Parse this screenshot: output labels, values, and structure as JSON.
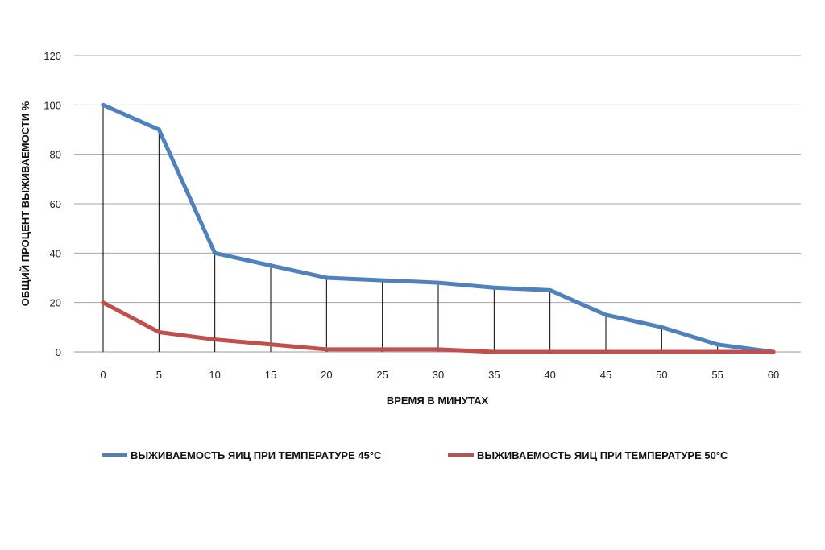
{
  "chart_data": {
    "type": "line",
    "title": "",
    "xlabel": "ВРЕМЯ В МИНУТАХ",
    "ylabel": "ОБЩИЙ ПРОЦЕНТ ВЫЖИВАЕМОСТИ  %",
    "x": [
      0,
      5,
      10,
      15,
      20,
      25,
      30,
      35,
      40,
      45,
      50,
      55,
      60
    ],
    "ylim": [
      0,
      120
    ],
    "yticks": [
      0,
      20,
      40,
      60,
      80,
      100,
      120
    ],
    "grid": true,
    "legend_position": "bottom",
    "drop_lines": true,
    "series": [
      {
        "name": "ВЫЖИВАЕМОСТЬ  ЯИЦ ПРИ ТЕМПЕРАТУРЕ  45°С",
        "color": "#4f81bd",
        "values": [
          100,
          90,
          40,
          35,
          30,
          29,
          28,
          26,
          25,
          15,
          10,
          3,
          0
        ]
      },
      {
        "name": "ВЫЖИВАЕМОСТЬ  ЯИЦ ПРИ ТЕМПЕРАТУРЕ  50°С",
        "color": "#c0504d",
        "values": [
          20,
          8,
          5,
          3,
          1,
          1,
          1,
          0,
          0,
          0,
          0,
          0,
          0
        ]
      }
    ]
  }
}
